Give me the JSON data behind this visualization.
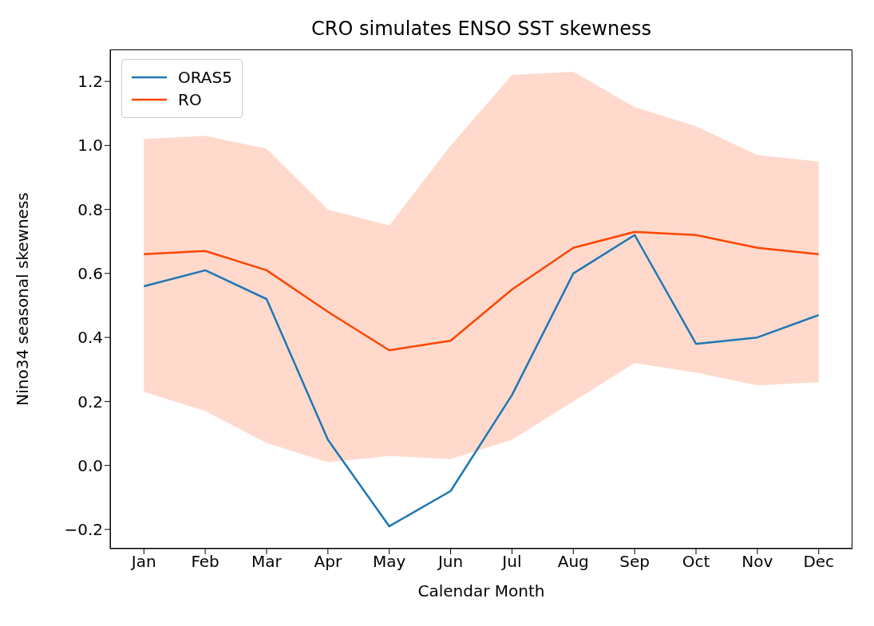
{
  "chart_data": {
    "type": "line",
    "title": "CRO simulates ENSO SST skewness",
    "xlabel": "Calendar Month",
    "ylabel": "Nino34 seasonal skewness",
    "categories": [
      "Jan",
      "Feb",
      "Mar",
      "Apr",
      "May",
      "Jun",
      "Jul",
      "Aug",
      "Sep",
      "Oct",
      "Nov",
      "Dec"
    ],
    "series": [
      {
        "name": "ORAS5",
        "color": "#1f77b4",
        "values": [
          0.56,
          0.61,
          0.52,
          0.08,
          -0.19,
          -0.08,
          0.22,
          0.6,
          0.72,
          0.38,
          0.4,
          0.47
        ]
      },
      {
        "name": "RO",
        "color": "#ff4500",
        "values": [
          0.66,
          0.67,
          0.61,
          0.48,
          0.36,
          0.39,
          0.55,
          0.68,
          0.73,
          0.72,
          0.68,
          0.66
        ],
        "lower": [
          0.23,
          0.17,
          0.07,
          0.01,
          0.03,
          0.02,
          0.08,
          0.2,
          0.32,
          0.29,
          0.25,
          0.26
        ],
        "upper": [
          1.02,
          1.03,
          0.99,
          0.8,
          0.75,
          1.0,
          1.22,
          1.23,
          1.12,
          1.06,
          0.97,
          0.95
        ]
      }
    ],
    "ylim": [
      -0.26,
      1.3
    ],
    "yticks": [
      {
        "value": -0.2,
        "label": "−0.2"
      },
      {
        "value": 0,
        "label": "0.0"
      },
      {
        "value": 0.2,
        "label": "0.2"
      },
      {
        "value": 0.4,
        "label": "0.4"
      },
      {
        "value": 0.6,
        "label": "0.6"
      },
      {
        "value": 0.8,
        "label": "0.8"
      },
      {
        "value": 1.0,
        "label": "1.0"
      },
      {
        "value": 1.2,
        "label": "1.2"
      }
    ],
    "legend": "top left",
    "line_style": "solid",
    "marker": "none"
  }
}
